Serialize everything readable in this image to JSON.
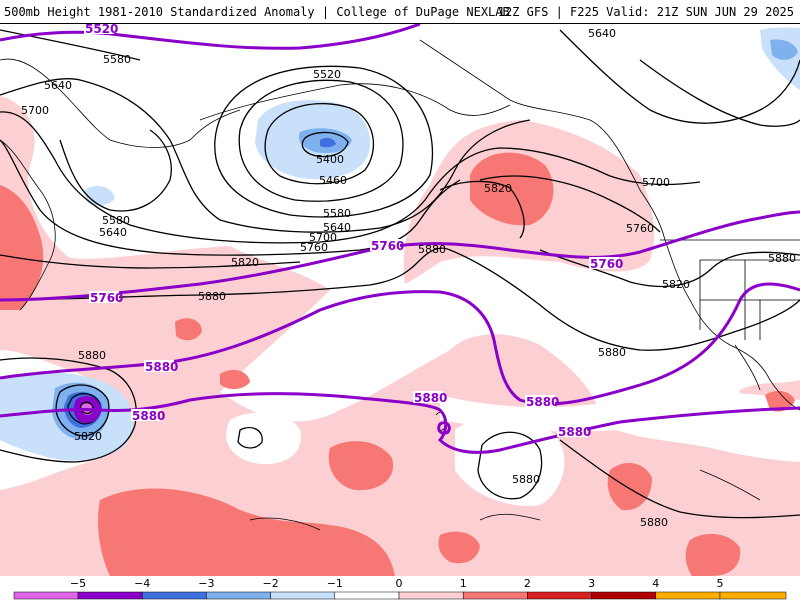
{
  "header": {
    "left": "500mb Height 1981-2010 Standardized Anomaly | College of DuPage NEXLAB",
    "right": "12Z GFS | F225 Valid: 21Z SUN JUN 29 2025"
  },
  "colors": {
    "ocean": "#ffffff",
    "contour_black": "#000000",
    "contour_purple": "#8a00c8",
    "neg1": "#c8e0fa",
    "neg2": "#7fb1ee",
    "neg3": "#3f70e0",
    "neg4": "#8a00c8",
    "neg5": "#e066e8",
    "pos1": "#fcd0d2",
    "pos2": "#f77775",
    "pos3": "#d92020",
    "pos4": "#b00000",
    "pos5": "#ffae00"
  },
  "contour_labels": {
    "black": [
      {
        "text": "5640",
        "name": "label-5640-top-right"
      },
      {
        "text": "5580",
        "name": "label-5580-top-left"
      },
      {
        "text": "5520",
        "name": "label-5520-top-center"
      },
      {
        "text": "5640",
        "name": "label-5640-left"
      },
      {
        "text": "5700",
        "name": "label-5700-left"
      },
      {
        "text": "5400",
        "name": "label-5400-low"
      },
      {
        "text": "5460",
        "name": "label-5460"
      },
      {
        "text": "5580",
        "name": "label-5580-left-low"
      },
      {
        "text": "5640",
        "name": "label-5640-left-low"
      },
      {
        "text": "5580",
        "name": "label-5580-center"
      },
      {
        "text": "5640",
        "name": "label-5640-center"
      },
      {
        "text": "5700",
        "name": "label-5700-center"
      },
      {
        "text": "5760",
        "name": "label-5760-center"
      },
      {
        "text": "5820",
        "name": "label-5820-left"
      },
      {
        "text": "5880",
        "name": "label-5880-center"
      },
      {
        "text": "5820",
        "name": "label-5820-ridge"
      },
      {
        "text": "5700",
        "name": "label-5700-right"
      },
      {
        "text": "5760",
        "name": "label-5760-right"
      },
      {
        "text": "5880",
        "name": "label-5880-center-right"
      },
      {
        "text": "5820",
        "name": "label-5820-right"
      },
      {
        "text": "5880",
        "name": "label-5880-far-right"
      },
      {
        "text": "5880",
        "name": "label-5880-far-left"
      },
      {
        "text": "5820",
        "name": "label-5820-cyclone"
      },
      {
        "text": "5880",
        "name": "label-5880-south"
      },
      {
        "text": "5880",
        "name": "label-5880-bottom-right"
      }
    ],
    "purple": [
      {
        "text": "5520",
        "name": "purple-label-5520"
      },
      {
        "text": "5760",
        "name": "purple-label-5760-center"
      },
      {
        "text": "5760",
        "name": "purple-label-5760-left"
      },
      {
        "text": "5760",
        "name": "purple-label-5760-right"
      },
      {
        "text": "5880",
        "name": "purple-label-5880-left-upper"
      },
      {
        "text": "5880",
        "name": "purple-label-5880-left-lower"
      },
      {
        "text": "5880",
        "name": "purple-label-5880-hawaii"
      },
      {
        "text": "5880",
        "name": "purple-label-5880-center"
      },
      {
        "text": "5880",
        "name": "purple-label-5880-south"
      }
    ]
  },
  "legend": {
    "ticks": [
      "−5",
      "−4",
      "−3",
      "−2",
      "−1",
      "0",
      "1",
      "2",
      "3",
      "4",
      "5"
    ]
  }
}
